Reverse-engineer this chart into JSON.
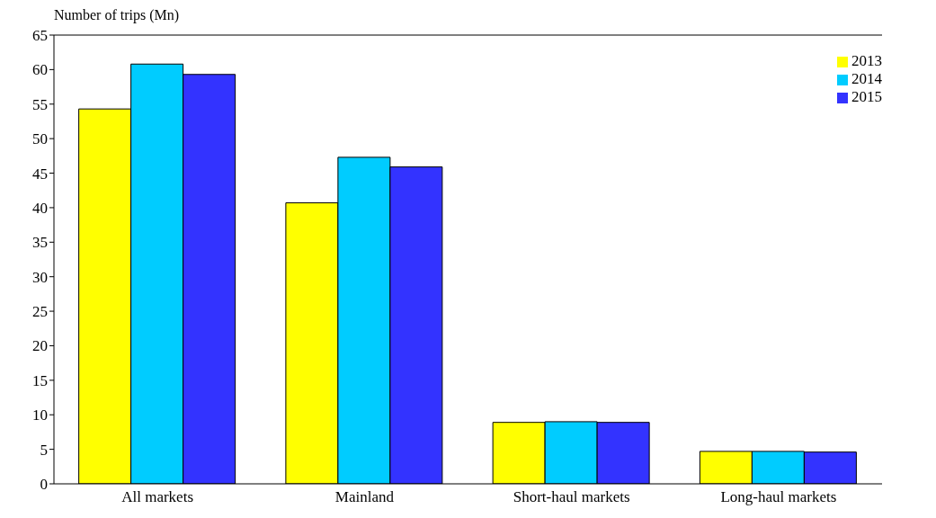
{
  "chart_data": {
    "type": "bar",
    "ylabel": "Number of trips (Mn)",
    "categories": [
      "All markets",
      "Mainland",
      "Short-haul markets",
      "Long-haul markets"
    ],
    "series": [
      {
        "name": "2013",
        "color": "#ffff00",
        "values": [
          54.3,
          40.7,
          8.9,
          4.7
        ]
      },
      {
        "name": "2014",
        "color": "#00ccff",
        "values": [
          60.8,
          47.3,
          9.0,
          4.7
        ]
      },
      {
        "name": "2015",
        "color": "#3333ff",
        "values": [
          59.3,
          45.9,
          8.9,
          4.6
        ]
      }
    ],
    "ylim": [
      0,
      65
    ],
    "yticks": [
      0,
      5,
      10,
      15,
      20,
      25,
      30,
      35,
      40,
      45,
      50,
      55,
      60,
      65
    ],
    "legend": "top right"
  }
}
